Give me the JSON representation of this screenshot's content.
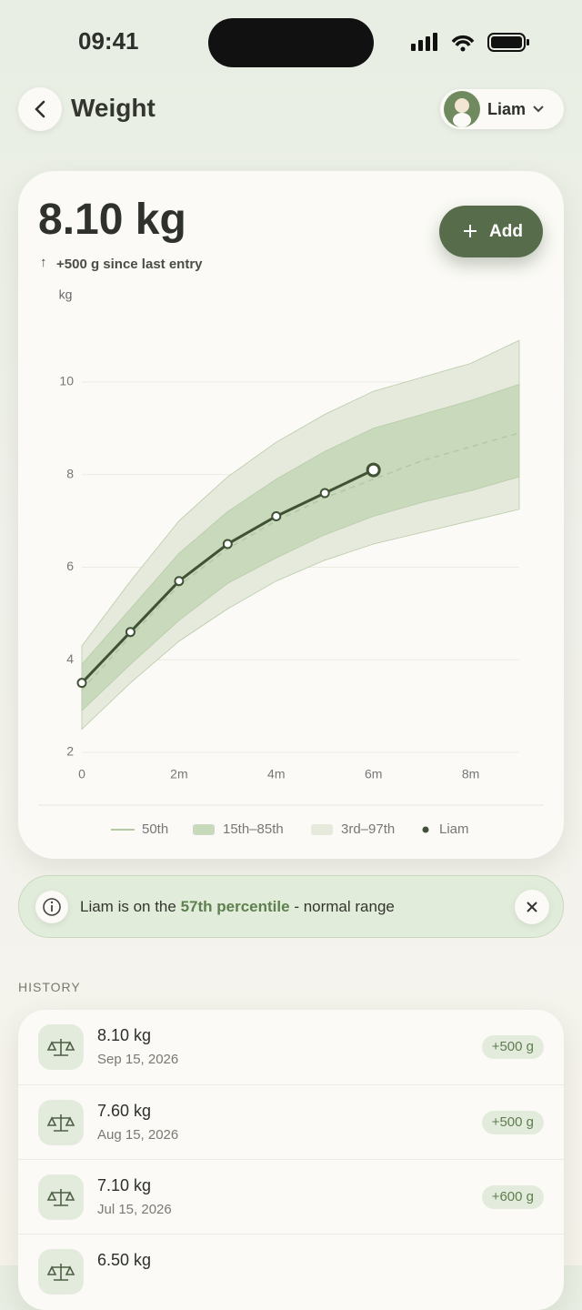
{
  "status_bar": {
    "time": "09:41"
  },
  "header": {
    "title": "Weight",
    "profile": "Liam"
  },
  "summary": {
    "value": "8.10 kg",
    "change": "+500 g since last entry",
    "add_button": "Add"
  },
  "chart_data": {
    "type": "line",
    "y_label": "kg",
    "x": [
      0,
      1,
      2,
      3,
      4,
      5,
      6,
      7,
      8,
      9
    ],
    "xlim": [
      0,
      9
    ],
    "xticks": [
      0,
      {
        "value": 2,
        "label": "2m"
      },
      {
        "value": 4,
        "label": "4m"
      },
      {
        "value": 6,
        "label": "6m"
      },
      {
        "value": 8,
        "label": "8m"
      }
    ],
    "ylim": [
      2,
      11
    ],
    "yticks": [
      2,
      4,
      6,
      8,
      10
    ],
    "grid": true,
    "series": [
      {
        "name": "50th",
        "color": "#b4c9a6",
        "kind": "line",
        "dashed": true,
        "values": [
          3.35,
          4.5,
          5.6,
          6.4,
          7.0,
          7.5,
          7.9,
          8.3,
          8.6,
          8.9
        ]
      },
      {
        "name": "15th–85th",
        "color": "#c9d9bb",
        "kind": "band",
        "lower": [
          2.9,
          3.9,
          4.85,
          5.65,
          6.2,
          6.7,
          7.1,
          7.4,
          7.65,
          7.95
        ],
        "upper": [
          3.9,
          5.1,
          6.3,
          7.2,
          7.9,
          8.5,
          9.0,
          9.3,
          9.6,
          9.95
        ]
      },
      {
        "name": "3rd–97th",
        "color": "#e5eadc",
        "kind": "band",
        "lower": [
          2.5,
          3.5,
          4.4,
          5.1,
          5.7,
          6.15,
          6.5,
          6.75,
          7.0,
          7.25
        ],
        "upper": [
          4.3,
          5.7,
          7.0,
          7.95,
          8.7,
          9.3,
          9.8,
          10.1,
          10.4,
          10.9
        ]
      },
      {
        "name": "Liam",
        "color": "#3f5236",
        "kind": "line",
        "markers": true,
        "values": [
          3.5,
          4.6,
          5.7,
          6.5,
          7.1,
          7.6,
          8.1,
          null,
          null,
          null
        ]
      }
    ]
  },
  "banner": {
    "prefix": "Liam is on the",
    "highlight": "57th percentile",
    "suffix": "- normal range"
  },
  "history": {
    "title": "HISTORY",
    "rows": [
      {
        "weight": "8.10 kg",
        "date": "Sep 15, 2026",
        "change": "+500 g"
      },
      {
        "weight": "7.60 kg",
        "date": "Aug 15, 2026",
        "change": "+500 g"
      },
      {
        "weight": "7.10 kg",
        "date": "Jul 15, 2026",
        "change": "+600 g"
      },
      {
        "weight": "6.50 kg"
      }
    ]
  }
}
